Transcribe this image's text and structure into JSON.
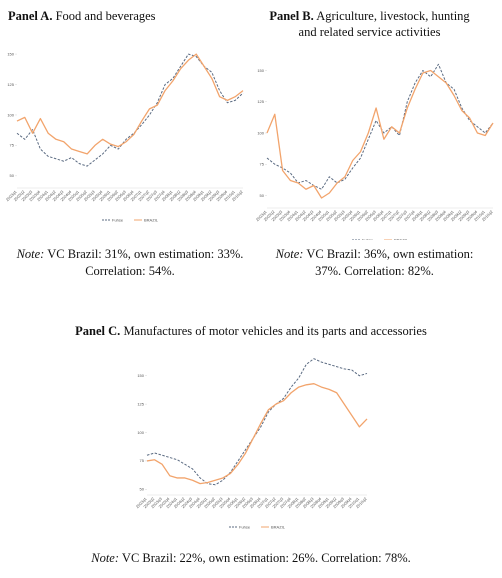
{
  "chart_data": [
    {
      "type": "line",
      "title_label": "Panel A.",
      "title": "Food and beverages",
      "note_label": "Note:",
      "note": "VC Brazil: 31%, own estimation: 33%. Correlation: 54%.",
      "categories": [
        "2003q1",
        "2003q2",
        "2003q3",
        "2003q4",
        "2004q1",
        "2004q2",
        "2004q3",
        "2004q4",
        "2005q1",
        "2005q2",
        "2005q3",
        "2005q4",
        "2006q1",
        "2006q2",
        "2006q3",
        "2006q4",
        "2007q1",
        "2007q2",
        "2007q3",
        "2007q4",
        "2008q1",
        "2008q2",
        "2008q3",
        "2008q4",
        "2009q1",
        "2009q2",
        "2009q3",
        "2009q4",
        "2010q1",
        "2010q2"
      ],
      "ylim": [
        40,
        155
      ],
      "yticks": [
        50,
        75,
        100,
        125,
        150
      ],
      "series": [
        {
          "name": "Fuhse",
          "color": "#5b6b82",
          "dash": true,
          "values": [
            85,
            80,
            88,
            72,
            66,
            64,
            62,
            65,
            60,
            58,
            63,
            68,
            75,
            72,
            80,
            85,
            92,
            100,
            110,
            125,
            130,
            140,
            150,
            148,
            140,
            135,
            120,
            110,
            112,
            118
          ]
        },
        {
          "name": "BRAZIL",
          "color": "#f2a46c",
          "dash": false,
          "values": [
            95,
            98,
            85,
            97,
            85,
            80,
            78,
            72,
            70,
            68,
            75,
            80,
            76,
            74,
            78,
            84,
            95,
            105,
            108,
            120,
            128,
            138,
            145,
            150,
            140,
            130,
            115,
            112,
            115,
            120
          ]
        }
      ]
    },
    {
      "type": "line",
      "title_label": "Panel B.",
      "title": "Agriculture, livestock, hunting and related service activities",
      "note_label": "Note:",
      "note": "VC Brazil: 36%, own estimation: 37%. Correlation: 82%.",
      "categories": [
        "2003q1",
        "2003q2",
        "2003q3",
        "2003q4",
        "2004q1",
        "2004q2",
        "2004q3",
        "2004q4",
        "2005q1",
        "2005q2",
        "2005q3",
        "2005q4",
        "2006q1",
        "2006q2",
        "2006q3",
        "2006q4",
        "2007q1",
        "2007q2",
        "2007q3",
        "2007q4",
        "2008q1",
        "2008q2",
        "2008q3",
        "2008q4",
        "2009q1",
        "2009q2",
        "2009q3",
        "2009q4",
        "2010q1",
        "2010q2"
      ],
      "ylim": [
        40,
        160
      ],
      "yticks": [
        50,
        75,
        100,
        125,
        150
      ],
      "series": [
        {
          "name": "Fuhse",
          "color": "#5b6b82",
          "dash": true,
          "values": [
            80,
            75,
            72,
            68,
            60,
            62,
            58,
            55,
            65,
            60,
            63,
            72,
            80,
            95,
            110,
            100,
            105,
            98,
            125,
            140,
            150,
            145,
            155,
            140,
            135,
            120,
            110,
            105,
            100,
            108
          ]
        },
        {
          "name": "BRAZIL",
          "color": "#f2a46c",
          "dash": false,
          "values": [
            100,
            115,
            70,
            62,
            60,
            55,
            58,
            48,
            52,
            60,
            65,
            78,
            85,
            100,
            120,
            95,
            105,
            100,
            120,
            135,
            148,
            150,
            145,
            140,
            130,
            118,
            112,
            100,
            98,
            108
          ]
        }
      ]
    },
    {
      "type": "line",
      "title_label": "Panel C.",
      "title": "Manufactures of motor vehicles and its parts and accessories",
      "note_label": "Note:",
      "note": "VC Brazil: 22%, own estimation: 26%. Correlation: 78%.",
      "categories": [
        "2003q1",
        "2003q2",
        "2003q3",
        "2003q4",
        "2004q1",
        "2004q2",
        "2004q3",
        "2004q4",
        "2005q1",
        "2005q2",
        "2005q3",
        "2005q4",
        "2006q1",
        "2006q2",
        "2006q3",
        "2006q4",
        "2007q1",
        "2007q2",
        "2007q3",
        "2007q4",
        "2008q1",
        "2008q2",
        "2008q3",
        "2008q4",
        "2009q1",
        "2009q2",
        "2009q3",
        "2009q4",
        "2010q1",
        "2010q2"
      ],
      "ylim": [
        45,
        170
      ],
      "yticks": [
        50,
        75,
        100,
        125,
        150
      ],
      "series": [
        {
          "name": "Fuhse",
          "color": "#5b6b82",
          "dash": true,
          "values": [
            80,
            82,
            80,
            78,
            76,
            72,
            68,
            60,
            55,
            54,
            58,
            65,
            75,
            85,
            95,
            105,
            118,
            125,
            130,
            140,
            148,
            160,
            165,
            162,
            160,
            158,
            156,
            155,
            150,
            152
          ]
        },
        {
          "name": "BRAZIL",
          "color": "#f2a46c",
          "dash": false,
          "values": [
            75,
            76,
            72,
            62,
            60,
            60,
            58,
            55,
            56,
            58,
            60,
            64,
            72,
            82,
            95,
            108,
            120,
            125,
            128,
            135,
            140,
            142,
            143,
            140,
            138,
            135,
            125,
            115,
            105,
            112
          ]
        }
      ]
    }
  ]
}
